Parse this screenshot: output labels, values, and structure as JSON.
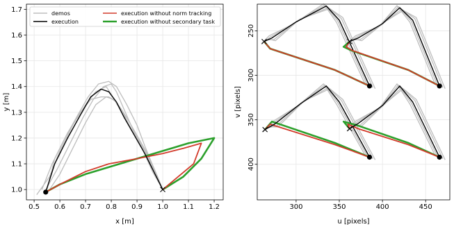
{
  "colors": {
    "demos": "#bdbdbd",
    "execution": "#000000",
    "no_norm": "#d23a2a",
    "no_secondary": "#2ca02c"
  },
  "chart_data": [
    {
      "type": "line",
      "xlabel": "x [m]",
      "ylabel": "y [m]",
      "xlim": [
        0.47,
        1.235
      ],
      "ylim": [
        0.96,
        1.72
      ],
      "xticks": [
        "0.5",
        "0.6",
        "0.7",
        "0.8",
        "0.9",
        "1.0",
        "1.1",
        "1.2"
      ],
      "yticks": [
        "1.0",
        "1.1",
        "1.2",
        "1.3",
        "1.4",
        "1.5",
        "1.6",
        "1.7"
      ],
      "grid": true,
      "legend": {
        "placement": "top",
        "entries": [
          {
            "label": "demos",
            "color": "#bdbdbd"
          },
          {
            "label": "execution without norm tracking",
            "color": "#d23a2a"
          },
          {
            "label": "execution",
            "color": "#000000"
          },
          {
            "label": "execution without secondary task",
            "color": "#2ca02c"
          }
        ]
      },
      "series": [
        {
          "role": "demos",
          "x": [
            0.51,
            0.56,
            0.6,
            0.65,
            0.7,
            0.74,
            0.78,
            0.8,
            0.84,
            0.88,
            0.92,
            0.96,
            1.0
          ],
          "y": [
            0.98,
            1.05,
            1.15,
            1.25,
            1.33,
            1.38,
            1.4,
            1.37,
            1.3,
            1.23,
            1.16,
            1.07,
            1.0
          ]
        },
        {
          "role": "demos",
          "x": [
            0.53,
            0.57,
            0.62,
            0.67,
            0.71,
            0.75,
            0.79,
            0.82,
            0.86,
            0.9,
            0.93,
            0.97,
            1.0
          ],
          "y": [
            1.0,
            1.1,
            1.2,
            1.29,
            1.36,
            1.41,
            1.42,
            1.4,
            1.33,
            1.25,
            1.17,
            1.07,
            1.0
          ]
        },
        {
          "role": "demos",
          "x": [
            0.55,
            0.58,
            0.63,
            0.68,
            0.72,
            0.76,
            0.79,
            0.82,
            0.86,
            0.9,
            0.94,
            0.97,
            1.0
          ],
          "y": [
            1.0,
            1.12,
            1.22,
            1.3,
            1.35,
            1.36,
            1.36,
            1.34,
            1.28,
            1.21,
            1.14,
            1.06,
            1.0
          ]
        },
        {
          "role": "demos",
          "x": [
            0.54,
            0.59,
            0.64,
            0.69,
            0.73,
            0.77,
            0.8,
            0.82,
            0.85,
            0.89,
            0.93,
            0.97,
            1.0
          ],
          "y": [
            0.99,
            1.08,
            1.18,
            1.28,
            1.35,
            1.4,
            1.41,
            1.38,
            1.31,
            1.22,
            1.15,
            1.06,
            1.0
          ]
        },
        {
          "role": "demos",
          "x": [
            0.56,
            0.6,
            0.65,
            0.7,
            0.74,
            0.78,
            0.81,
            0.84,
            0.87,
            0.91,
            0.95,
            0.98,
            1.0
          ],
          "y": [
            1.0,
            1.06,
            1.16,
            1.26,
            1.33,
            1.36,
            1.35,
            1.31,
            1.25,
            1.18,
            1.12,
            1.05,
            1.0
          ]
        },
        {
          "role": "execution",
          "x": [
            0.545,
            0.58,
            0.63,
            0.68,
            0.72,
            0.76,
            0.79,
            0.82,
            0.85,
            0.89,
            0.93,
            0.97,
            1.0
          ],
          "y": [
            0.99,
            1.1,
            1.2,
            1.29,
            1.36,
            1.39,
            1.38,
            1.34,
            1.28,
            1.21,
            1.14,
            1.06,
            1.0
          ]
        },
        {
          "role": "no_norm",
          "x": [
            0.545,
            0.6,
            0.7,
            0.79,
            0.9,
            1.0,
            1.08,
            1.15,
            1.12,
            1.06,
            1.0
          ],
          "y": [
            0.99,
            1.02,
            1.07,
            1.1,
            1.12,
            1.14,
            1.16,
            1.18,
            1.1,
            1.05,
            1.0
          ]
        },
        {
          "role": "no_secondary",
          "x": [
            0.545,
            0.6,
            0.7,
            0.8,
            0.9,
            1.0,
            1.1,
            1.2,
            1.15,
            1.08,
            1.0
          ],
          "y": [
            0.99,
            1.02,
            1.06,
            1.09,
            1.12,
            1.15,
            1.18,
            1.2,
            1.12,
            1.05,
            1.0
          ]
        }
      ],
      "markers": [
        {
          "x": 0.545,
          "y": 0.99,
          "shape": "dot"
        },
        {
          "x": 1.0,
          "y": 1.0,
          "shape": "cross"
        }
      ]
    },
    {
      "type": "line",
      "xlabel": "u [pixels]",
      "ylabel": "v [pixels]",
      "xlim": [
        255,
        478
      ],
      "ylim": [
        220,
        440
      ],
      "y_inverted": true,
      "xticks": [
        "300",
        "350",
        "400",
        "450"
      ],
      "yticks": [
        "250",
        "300",
        "350",
        "400"
      ],
      "grid": true,
      "groups": [
        {
          "demos_offsets": [
            -4,
            -2,
            0,
            3,
            5
          ],
          "execution": {
            "x": [
              263,
              272,
              300,
              335,
              350,
              385
            ],
            "y": [
              262,
              258,
              240,
              222,
              238,
              312
            ]
          },
          "no_norm": {
            "x": [
              263,
              270,
              345,
              385
            ],
            "y": [
              262,
              270,
              294,
              312
            ]
          },
          "no_secondary": {
            "x": [
              263,
              270,
              345,
              385
            ],
            "y": [
              262,
              270,
              294,
              312
            ]
          },
          "start": [
            385,
            312
          ],
          "end": [
            263,
            262
          ]
        },
        {
          "demos_offsets": [
            -4,
            -2,
            0,
            3,
            5
          ],
          "execution": {
            "x": [
              362,
              372,
              400,
              420,
              435,
              466
            ],
            "y": [
              262,
              258,
              242,
              224,
              238,
              312
            ]
          },
          "no_norm": {
            "x": [
              362,
              358,
              365,
              430,
              466
            ],
            "y": [
              262,
              268,
              272,
              294,
              312
            ]
          },
          "no_secondary": {
            "x": [
              362,
              355,
              364,
              430,
              466
            ],
            "y": [
              262,
              268,
              272,
              294,
              312
            ]
          },
          "start": [
            466,
            312
          ],
          "end": [
            362,
            262
          ]
        },
        {
          "demos_offsets": [
            -4,
            -2,
            0,
            3,
            5
          ],
          "execution": {
            "x": [
              264,
              275,
              305,
              335,
              350,
              385
            ],
            "y": [
              361,
              355,
              332,
              312,
              330,
              392
            ]
          },
          "no_norm": {
            "x": [
              264,
              270,
              345,
              385
            ],
            "y": [
              361,
              355,
              378,
              392
            ]
          },
          "no_secondary": {
            "x": [
              264,
              272,
              345,
              385
            ],
            "y": [
              361,
              352,
              376,
              392
            ]
          },
          "start": [
            385,
            392
          ],
          "end": [
            264,
            361
          ]
        },
        {
          "demos_offsets": [
            -4,
            -2,
            0,
            3,
            5
          ],
          "execution": {
            "x": [
              362,
              372,
              400,
              420,
              435,
              466
            ],
            "y": [
              360,
              354,
              334,
              312,
              330,
              392
            ]
          },
          "no_norm": {
            "x": [
              362,
              360,
              372,
              430,
              466
            ],
            "y": [
              360,
              355,
              360,
              378,
              392
            ]
          },
          "no_secondary": {
            "x": [
              362,
              355,
              370,
              430,
              466
            ],
            "y": [
              360,
              352,
              356,
              376,
              392
            ]
          },
          "start": [
            466,
            392
          ],
          "end": [
            362,
            360
          ]
        }
      ]
    }
  ]
}
